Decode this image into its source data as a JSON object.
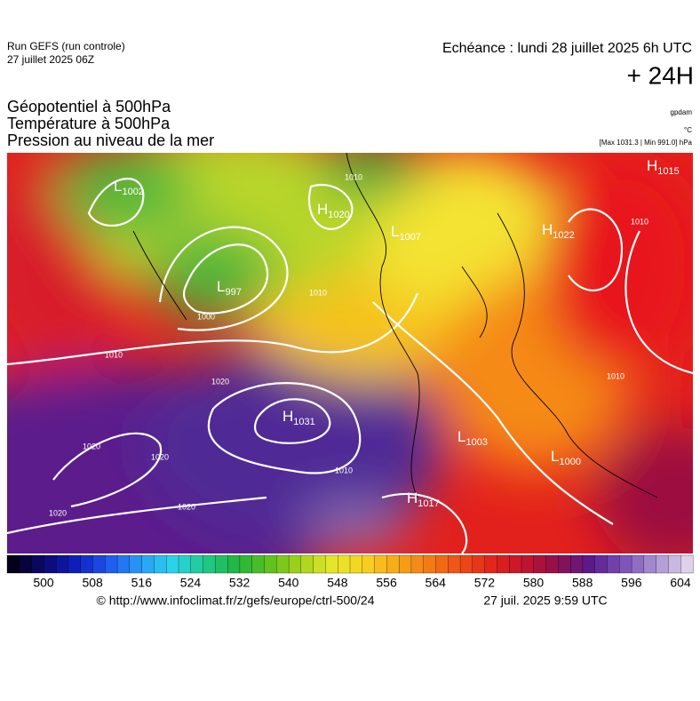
{
  "header": {
    "run": "Run GEFS (run controle)",
    "run_date": "27 juillet 2025 06Z",
    "valid": "Echéance : lundi 28 juillet 2025 6h UTC",
    "lead": "+ 24H"
  },
  "fields": [
    "Géopotentiel à 500hPa",
    "Température à 500hPa",
    "Pression au niveau de la mer"
  ],
  "units": [
    "gpdam",
    "°C",
    "[Max 1031.3 | Min 991.0] hPa"
  ],
  "pressure_centers": [
    {
      "letter": "L",
      "value": 1002
    },
    {
      "letter": "H",
      "value": 1020
    },
    {
      "letter": "L",
      "value": 1007
    },
    {
      "letter": "H",
      "value": 1022
    },
    {
      "letter": "H",
      "value": 1015
    },
    {
      "letter": "L",
      "value": 997
    },
    {
      "letter": "H",
      "value": 1031
    },
    {
      "letter": "L",
      "value": 1003
    },
    {
      "letter": "L",
      "value": 1000
    },
    {
      "letter": "H",
      "value": 1017
    }
  ],
  "isobar_labels": [
    1010,
    1000,
    1010,
    1020,
    1020,
    1020,
    1020,
    1020,
    1010,
    1010,
    1010,
    1010
  ],
  "colorbar_ticks": [
    500,
    508,
    516,
    524,
    532,
    540,
    548,
    556,
    564,
    572,
    580,
    588,
    596,
    604
  ],
  "footer": {
    "source": "© http://www.infoclimat.fr/z/gefs/europe/ctrl-500/24",
    "generated": "27 juil. 2025  9:59 UTC"
  }
}
